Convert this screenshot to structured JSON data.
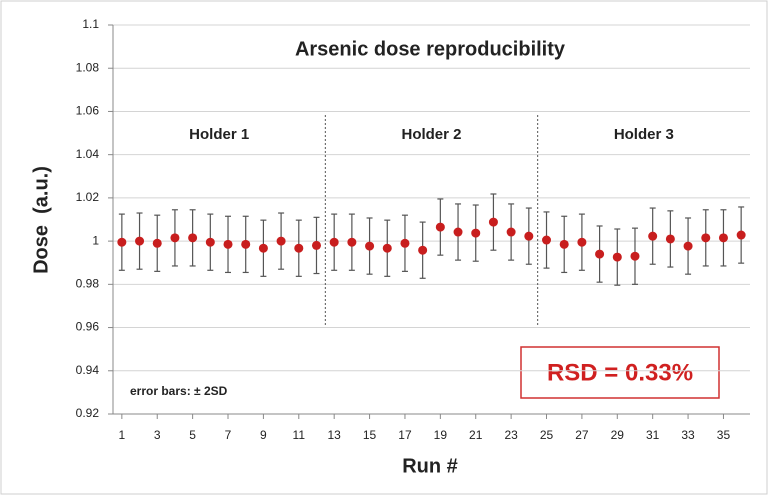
{
  "chart_data": {
    "type": "scatter",
    "title": "Arsenic dose reproducibility",
    "x_label": "Run #",
    "y_label": "Dose  (a.u.)",
    "x": [
      1,
      2,
      3,
      4,
      5,
      6,
      7,
      8,
      9,
      10,
      11,
      12,
      13,
      14,
      15,
      16,
      17,
      18,
      19,
      20,
      21,
      22,
      23,
      24,
      25,
      26,
      27,
      28,
      29,
      30,
      31,
      32,
      33,
      34,
      35,
      36
    ],
    "values": [
      0.9995,
      1.0,
      0.999,
      1.0015,
      1.0015,
      0.9995,
      0.9985,
      0.9985,
      0.9967,
      1.0,
      0.9967,
      0.998,
      0.9995,
      0.9995,
      0.9977,
      0.9967,
      0.999,
      0.9958,
      1.0065,
      1.0042,
      1.0037,
      1.0088,
      1.0042,
      1.0023,
      1.0005,
      0.9985,
      0.9995,
      0.994,
      0.9926,
      0.993,
      1.0023,
      1.001,
      0.9977,
      1.0015,
      1.0015,
      1.0028
    ],
    "errors": [
      0.013,
      0.013,
      0.013,
      0.013,
      0.013,
      0.013,
      0.013,
      0.013,
      0.013,
      0.013,
      0.013,
      0.013,
      0.013,
      0.013,
      0.013,
      0.013,
      0.013,
      0.013,
      0.013,
      0.013,
      0.013,
      0.013,
      0.013,
      0.013,
      0.013,
      0.013,
      0.013,
      0.013,
      0.013,
      0.013,
      0.013,
      0.013,
      0.013,
      0.013,
      0.013,
      0.013
    ],
    "color": "#c81e1e",
    "error_color": "#555555",
    "xlim": [
      0.5,
      36.5
    ],
    "xticks": [
      1,
      3,
      5,
      7,
      9,
      11,
      13,
      15,
      17,
      19,
      21,
      23,
      25,
      27,
      29,
      31,
      33,
      35
    ],
    "ylim": [
      0.92,
      1.1
    ],
    "yticks": [
      0.92,
      0.94,
      0.96,
      0.98,
      1,
      1.02,
      1.04,
      1.06,
      1.08,
      1.1
    ],
    "grid": true,
    "groups": [
      "Holder 1",
      "Holder 2",
      "Holder 3"
    ],
    "error_note": "error bars: ± 2SD",
    "rsd_label": "RSD = 0.33%"
  }
}
